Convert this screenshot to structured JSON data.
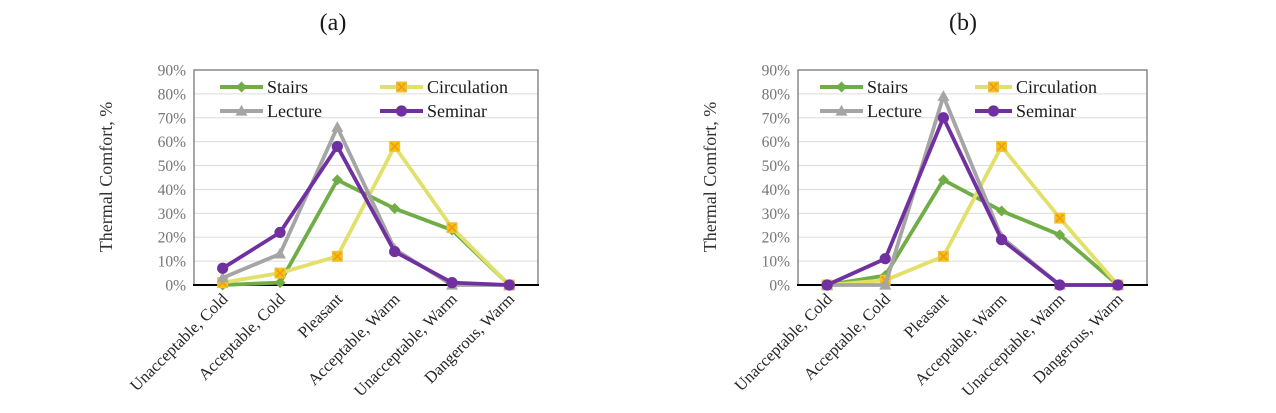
{
  "figure": {
    "background": "#ffffff",
    "panel_labels": [
      "(a)",
      "(b)"
    ]
  },
  "style": {
    "grid_color": "#dcdcdc",
    "plot_border_color": "#808080",
    "axis_color": "#000000",
    "tick_label_color": "#757575",
    "category_label_color": "#262626",
    "legend_text_color": "#1a1a1a"
  },
  "chart_data": [
    {
      "type": "line",
      "title": "(a)",
      "ylabel": "Thermal Comfort, %",
      "ylim": [
        0,
        90
      ],
      "ytick_step": 10,
      "ytick_labels": [
        "90%",
        "80%",
        "70%",
        "60%",
        "50%",
        "40%",
        "30%",
        "20%",
        "10%",
        "0%"
      ],
      "grid": true,
      "legend_position": "top-inside",
      "categories": [
        "Unacceptable, Cold",
        "Acceptable, Cold",
        "Pleasant",
        "Acceptable, Warm",
        "Unacceptable, Warm",
        "Dangerous, Warm"
      ],
      "series": [
        {
          "name": "Stairs",
          "color": "#70AD47",
          "marker": "diamond",
          "values": [
            0,
            1,
            44,
            32,
            23,
            0
          ]
        },
        {
          "name": "Circulation",
          "color": "#E2E06A",
          "marker": "square-x",
          "marker_fill": "#FFC000",
          "marker_edge": "#E7C24A",
          "marker_detail": "#E59B23",
          "values": [
            1,
            5,
            12,
            58,
            24,
            0
          ]
        },
        {
          "name": "Lecture",
          "color": "#A5A5A5",
          "marker": "triangle",
          "values": [
            3,
            13,
            66,
            15,
            0,
            0
          ]
        },
        {
          "name": "Seminar",
          "color": "#7030A0",
          "marker": "circle",
          "values": [
            7,
            22,
            58,
            14,
            1,
            0
          ]
        }
      ]
    },
    {
      "type": "line",
      "title": "(b)",
      "ylabel": "Thermal Comfort, %",
      "ylim": [
        0,
        90
      ],
      "ytick_step": 10,
      "ytick_labels": [
        "90%",
        "80%",
        "70%",
        "60%",
        "50%",
        "40%",
        "30%",
        "20%",
        "10%",
        "0%"
      ],
      "grid": true,
      "legend_position": "top-inside",
      "categories": [
        "Unacceptable, Cold",
        "Acceptable, Cold",
        "Pleasant",
        "Acceptable, Warm",
        "Unacceptable, Warm",
        "Dangerous, Warm"
      ],
      "series": [
        {
          "name": "Stairs",
          "color": "#70AD47",
          "marker": "diamond",
          "values": [
            0,
            4,
            44,
            31,
            21,
            0
          ]
        },
        {
          "name": "Circulation",
          "color": "#E2E06A",
          "marker": "square-x",
          "marker_fill": "#FFC000",
          "marker_edge": "#E7C24A",
          "marker_detail": "#E59B23",
          "values": [
            0,
            2,
            12,
            58,
            28,
            0
          ]
        },
        {
          "name": "Lecture",
          "color": "#A5A5A5",
          "marker": "triangle",
          "values": [
            0,
            0,
            79,
            20,
            0,
            0
          ]
        },
        {
          "name": "Seminar",
          "color": "#7030A0",
          "marker": "circle",
          "values": [
            0,
            11,
            70,
            19,
            0,
            0
          ]
        }
      ]
    }
  ]
}
